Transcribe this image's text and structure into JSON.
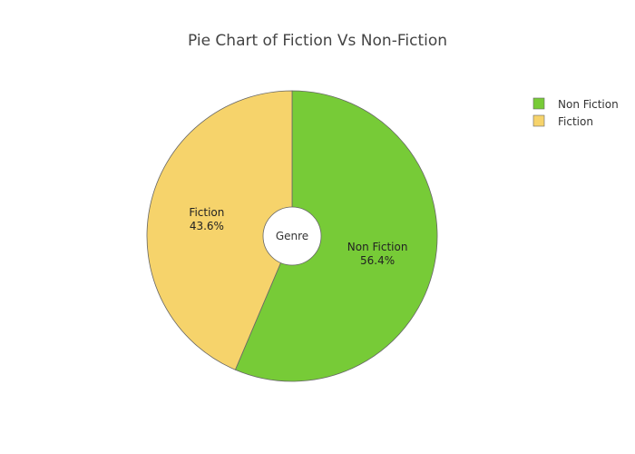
{
  "chart_data": {
    "type": "pie",
    "title": "Pie Chart of Fiction Vs Non-Fiction",
    "hole_label": "Genre",
    "legend_placement": "top-right",
    "slices": [
      {
        "label": "Non Fiction",
        "percent_text": "56.4%",
        "value": 56.4,
        "color": "#77cb37"
      },
      {
        "label": "Fiction",
        "percent_text": "43.6%",
        "value": 43.6,
        "color": "#f6d36b"
      }
    ]
  }
}
